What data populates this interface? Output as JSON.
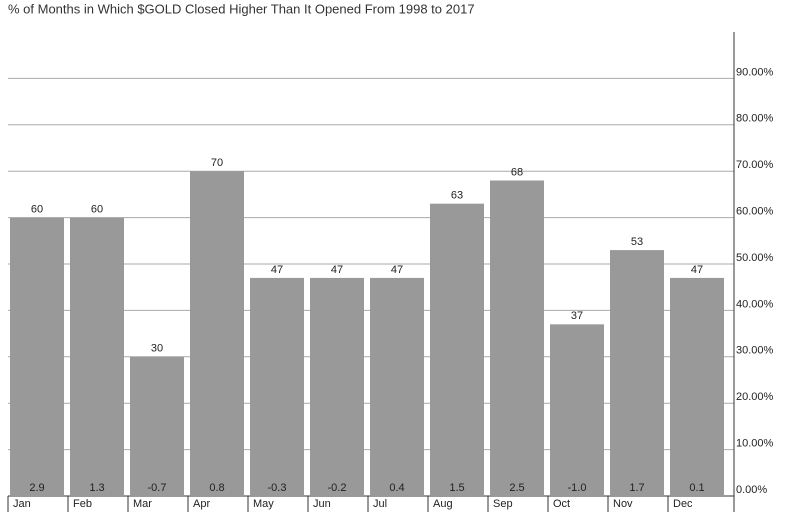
{
  "chart_data": {
    "type": "bar",
    "title": "% of Months in Which $GOLD Closed Higher Than It Opened From 1998 to 2017",
    "categories": [
      "Jan",
      "Feb",
      "Mar",
      "Apr",
      "May",
      "Jun",
      "Jul",
      "Aug",
      "Sep",
      "Oct",
      "Nov",
      "Dec"
    ],
    "values": [
      60,
      60,
      30,
      70,
      47,
      47,
      47,
      63,
      68,
      37,
      53,
      47
    ],
    "color": "#999999",
    "secondary_values": [
      2.9,
      1.3,
      -0.7,
      0.8,
      -0.3,
      -0.2,
      0.4,
      1.5,
      2.5,
      -1.0,
      1.7,
      0.1
    ],
    "secondary_value_labels": [
      "2.9",
      "1.3",
      "-0.7",
      "0.8",
      "-0.3",
      "-0.2",
      "0.4",
      "1.5",
      "2.5",
      "-1.0",
      "1.7",
      "0.1"
    ],
    "ylim": [
      0,
      100
    ],
    "yticks": [
      {
        "value": 0,
        "label": "0.00%"
      },
      {
        "value": 10,
        "label": "10.00%"
      },
      {
        "value": 20,
        "label": "20.00%"
      },
      {
        "value": 30,
        "label": "30.00%"
      },
      {
        "value": 40,
        "label": "40.00%"
      },
      {
        "value": 50,
        "label": "50.00%"
      },
      {
        "value": 60,
        "label": "60.00%"
      },
      {
        "value": 70,
        "label": "70.00%"
      },
      {
        "value": 80,
        "label": "80.00%"
      },
      {
        "value": 90,
        "label": "90.00%"
      }
    ],
    "grid": true
  }
}
